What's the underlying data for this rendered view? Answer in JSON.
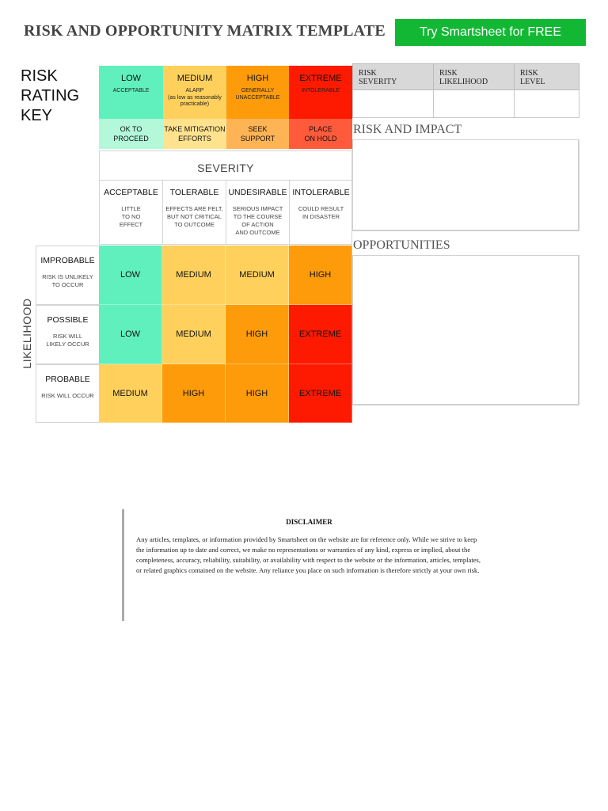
{
  "header": {
    "title": "RISK AND OPPORTUNITY MATRIX TEMPLATE",
    "cta_label": "Try Smartsheet for FREE"
  },
  "rating_key": {
    "title_lines": [
      "RISK",
      "RATING",
      "KEY"
    ],
    "levels": [
      {
        "label": "LOW",
        "desc": "ACCEPTABLE",
        "action_lines": [
          "OK TO",
          "PROCEED"
        ],
        "color": "#5ff0bd"
      },
      {
        "label": "MEDIUM",
        "desc_lines": [
          "ALARP",
          "(as low as reasonably",
          "practicable)"
        ],
        "action_lines": [
          "TAKE MITIGATION",
          "EFFORTS"
        ],
        "color": "#ffd15c"
      },
      {
        "label": "HIGH",
        "desc_lines": [
          "GENERALLY",
          "UNACCEPTABLE"
        ],
        "action_lines": [
          "SEEK",
          "SUPPORT"
        ],
        "color": "#fe9b0b"
      },
      {
        "label": "EXTREME",
        "desc": "INTOLERABLE",
        "action_lines": [
          "PLACE",
          "ON HOLD"
        ],
        "color": "#fe1a00"
      }
    ]
  },
  "severity": {
    "title": "SEVERITY",
    "columns": [
      {
        "label": "ACCEPTABLE",
        "desc_lines": [
          "LITTLE",
          "TO NO",
          "EFFECT"
        ]
      },
      {
        "label": "TOLERABLE",
        "desc_lines": [
          "EFFECTS ARE FELT,",
          "BUT NOT CRITICAL",
          "TO OUTCOME"
        ]
      },
      {
        "label": "UNDESIRABLE",
        "desc_lines": [
          "SERIOUS IMPACT",
          "TO THE COURSE",
          "OF ACTION",
          "AND OUTCOME"
        ]
      },
      {
        "label": "INTOLERABLE",
        "desc_lines": [
          "COULD RESULT",
          "IN DISASTER"
        ]
      }
    ]
  },
  "likelihood": {
    "title": "LIKELIHOOD",
    "rows": [
      {
        "label": "IMPROBABLE",
        "desc_lines": [
          "RISK IS UNLIKELY",
          "TO OCCUR"
        ],
        "cells": [
          "LOW",
          "MEDIUM",
          "MEDIUM",
          "HIGH"
        ]
      },
      {
        "label": "POSSIBLE",
        "desc_lines": [
          "RISK WILL",
          "LIKELY OCCUR"
        ],
        "cells": [
          "LOW",
          "MEDIUM",
          "HIGH",
          "EXTREME"
        ]
      },
      {
        "label": "PROBABLE",
        "desc_lines": [
          "RISK WILL OCCUR"
        ],
        "cells": [
          "MEDIUM",
          "HIGH",
          "HIGH",
          "EXTREME"
        ]
      }
    ]
  },
  "summary_table": {
    "headers": [
      [
        "RISK",
        "SEVERITY"
      ],
      [
        "RISK",
        "LIKELIHOOD"
      ],
      [
        "RISK",
        "LEVEL"
      ]
    ]
  },
  "sections": {
    "risk_impact": "RISK AND IMPACT",
    "opportunities": "OPPORTUNITIES"
  },
  "disclaimer": {
    "title": "DISCLAIMER",
    "body": "Any articles, templates, or information provided by Smartsheet on the website are for reference only. While we strive to keep the information up to date and correct, we make no representations or warranties of any kind, express or implied, about the completeness, accuracy, reliability, suitability, or availability with respect to the website or the information, articles, templates, or related graphics contained on the website. Any reliance you place on such information is therefore strictly at your own risk."
  }
}
